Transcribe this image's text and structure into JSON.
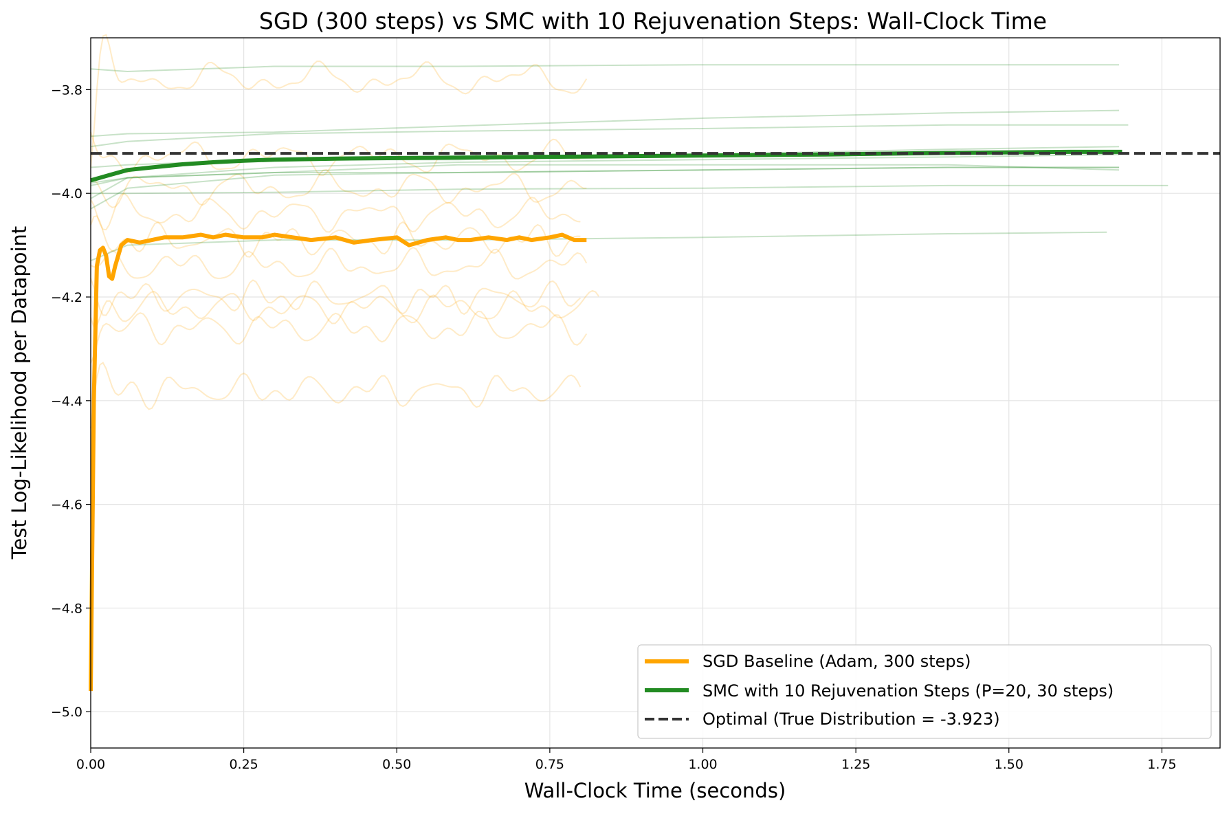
{
  "chart_data": {
    "type": "line",
    "title": "SGD (300 steps) vs SMC with 10 Rejuvenation Steps: Wall-Clock Time",
    "xlabel": "Wall-Clock Time (seconds)",
    "ylabel": "Test Log-Likelihood per Datapoint",
    "xlim": [
      0.0,
      1.845
    ],
    "ylim": [
      -5.07,
      -3.7
    ],
    "xticks": [
      0.0,
      0.25,
      0.5,
      0.75,
      1.0,
      1.25,
      1.5,
      1.75
    ],
    "xtick_labels": [
      "0.00",
      "0.25",
      "0.50",
      "0.75",
      "1.00",
      "1.25",
      "1.50",
      "1.75"
    ],
    "yticks": [
      -5.0,
      -4.8,
      -4.6,
      -4.4,
      -4.2,
      -4.0,
      -3.8
    ],
    "ytick_labels": [
      "−5.0",
      "−4.8",
      "−4.6",
      "−4.4",
      "−4.2",
      "−4.0",
      "−3.8"
    ],
    "grid": true,
    "legend_position": "lower-right",
    "colors": {
      "sgd": "#ffa500",
      "smc": "#228b22",
      "optimal": "#333333"
    },
    "series": [
      {
        "name": "SGD Baseline (Adam, 300 steps)",
        "style": "mean",
        "x": [
          0.0,
          0.005,
          0.01,
          0.015,
          0.02,
          0.025,
          0.03,
          0.035,
          0.04,
          0.05,
          0.06,
          0.08,
          0.1,
          0.12,
          0.15,
          0.18,
          0.2,
          0.22,
          0.25,
          0.28,
          0.3,
          0.33,
          0.36,
          0.4,
          0.43,
          0.46,
          0.5,
          0.52,
          0.55,
          0.58,
          0.6,
          0.62,
          0.65,
          0.68,
          0.7,
          0.72,
          0.75,
          0.77,
          0.79,
          0.81
        ],
        "y": [
          -4.96,
          -4.4,
          -4.14,
          -4.11,
          -4.105,
          -4.12,
          -4.16,
          -4.165,
          -4.14,
          -4.1,
          -4.09,
          -4.095,
          -4.09,
          -4.085,
          -4.085,
          -4.08,
          -4.085,
          -4.08,
          -4.085,
          -4.085,
          -4.08,
          -4.085,
          -4.09,
          -4.085,
          -4.095,
          -4.09,
          -4.085,
          -4.1,
          -4.09,
          -4.085,
          -4.09,
          -4.09,
          -4.085,
          -4.09,
          -4.085,
          -4.09,
          -4.085,
          -4.08,
          -4.09,
          -4.09
        ]
      },
      {
        "name": "SMC with 10 Rejuvenation Steps (P=20, 30 steps)",
        "style": "mean",
        "x": [
          0.0,
          0.03,
          0.06,
          0.1,
          0.15,
          0.2,
          0.25,
          0.3,
          0.4,
          0.5,
          0.6,
          0.8,
          1.0,
          1.2,
          1.4,
          1.6,
          1.685
        ],
        "y": [
          -3.975,
          -3.965,
          -3.955,
          -3.95,
          -3.944,
          -3.94,
          -3.937,
          -3.935,
          -3.933,
          -3.932,
          -3.931,
          -3.929,
          -3.927,
          -3.925,
          -3.922,
          -3.92,
          -3.92
        ]
      },
      {
        "name": "Optimal (True Distribution = -3.923)",
        "style": "reference",
        "y_value": -3.923
      }
    ],
    "sgd_runs_faint": [
      {
        "base": -3.78,
        "x_end": 0.81,
        "start": -3.95
      },
      {
        "base": -3.93,
        "x_end": 0.8,
        "start": -3.9
      },
      {
        "base": -3.99,
        "x_end": 0.81,
        "start": -4.02
      },
      {
        "base": -4.04,
        "x_end": 0.8,
        "start": -4.08
      },
      {
        "base": -4.14,
        "x_end": 0.81,
        "start": -4.14
      },
      {
        "base": -4.22,
        "x_end": 0.83,
        "start": -4.28
      },
      {
        "base": -4.26,
        "x_end": 0.81,
        "start": -4.32
      },
      {
        "base": -4.38,
        "x_end": 0.8,
        "start": -4.47
      },
      {
        "base": -4.09,
        "x_end": 0.8,
        "start": -4.12
      },
      {
        "base": -4.2,
        "x_end": 0.8,
        "start": -4.22
      }
    ],
    "smc_runs_faint": [
      {
        "x": [
          0.0,
          0.06,
          0.3,
          0.6,
          1.0,
          1.4,
          1.68
        ],
        "y": [
          -3.76,
          -3.765,
          -3.755,
          -3.755,
          -3.752,
          -3.752,
          -3.752
        ]
      },
      {
        "x": [
          0.0,
          0.06,
          0.3,
          0.6,
          1.0,
          1.4,
          1.68
        ],
        "y": [
          -3.89,
          -3.885,
          -3.882,
          -3.87,
          -3.855,
          -3.845,
          -3.84
        ]
      },
      {
        "x": [
          0.0,
          0.06,
          0.3,
          0.6,
          1.0,
          1.4,
          1.695
        ],
        "y": [
          -3.91,
          -3.9,
          -3.885,
          -3.88,
          -3.875,
          -3.868,
          -3.868
        ]
      },
      {
        "x": [
          0.0,
          0.06,
          0.3,
          0.6,
          1.0,
          1.4,
          1.68
        ],
        "y": [
          -3.95,
          -3.945,
          -3.935,
          -3.935,
          -3.925,
          -3.915,
          -3.91
        ]
      },
      {
        "x": [
          0.0,
          0.06,
          0.3,
          0.6,
          1.0,
          1.4,
          1.68
        ],
        "y": [
          -3.985,
          -3.97,
          -3.96,
          -3.96,
          -3.955,
          -3.95,
          -3.95
        ]
      },
      {
        "x": [
          0.0,
          0.06,
          0.3,
          0.6,
          1.0,
          1.4,
          1.68
        ],
        "y": [
          -3.98,
          -3.97,
          -3.96,
          -3.945,
          -3.945,
          -3.945,
          -3.955
        ]
      },
      {
        "x": [
          0.0,
          0.06,
          0.3,
          0.6,
          1.0,
          1.4,
          1.76
        ],
        "y": [
          -4.0,
          -4.0,
          -3.998,
          -3.992,
          -3.99,
          -3.985,
          -3.985
        ]
      },
      {
        "x": [
          0.0,
          0.06,
          0.3,
          0.6,
          1.0,
          1.4,
          1.66
        ],
        "y": [
          -4.13,
          -4.1,
          -4.09,
          -4.09,
          -4.085,
          -4.078,
          -4.075
        ]
      },
      {
        "x": [
          0.0,
          0.06,
          0.3,
          0.6,
          1.0,
          1.4,
          1.68
        ],
        "y": [
          -4.03,
          -3.99,
          -3.965,
          -3.96,
          -3.955,
          -3.95,
          -3.95
        ]
      },
      {
        "x": [
          0.0,
          0.06,
          0.3,
          0.6,
          1.0,
          1.4,
          1.68
        ],
        "y": [
          -4.01,
          -3.97,
          -3.95,
          -3.94,
          -3.935,
          -3.93,
          -3.925
        ]
      }
    ]
  }
}
